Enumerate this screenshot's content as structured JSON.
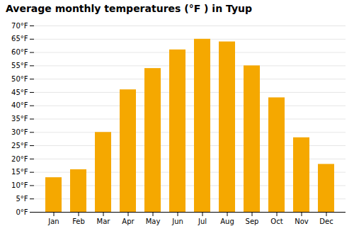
{
  "chart_data": {
    "type": "bar",
    "title": "Average monthly temperatures (°F ) in Tyup",
    "categories": [
      "Jan",
      "Feb",
      "Mar",
      "Apr",
      "May",
      "Jun",
      "Jul",
      "Aug",
      "Sep",
      "Oct",
      "Nov",
      "Dec"
    ],
    "values": [
      13,
      16,
      30,
      46,
      54,
      61,
      65,
      64,
      55,
      43,
      28,
      18
    ],
    "color": "#F5A800",
    "ylim": [
      0,
      70
    ],
    "yticks": [
      {
        "value": 0,
        "label": "0°F"
      },
      {
        "value": 5,
        "label": "5°F"
      },
      {
        "value": 10,
        "label": "10°F"
      },
      {
        "value": 15,
        "label": "15°F"
      },
      {
        "value": 20,
        "label": "20°F"
      },
      {
        "value": 25,
        "label": "25°F"
      },
      {
        "value": 30,
        "label": "30°F"
      },
      {
        "value": 35,
        "label": "35°F"
      },
      {
        "value": 40,
        "label": "40°F"
      },
      {
        "value": 45,
        "label": "45°F"
      },
      {
        "value": 50,
        "label": "50°F"
      },
      {
        "value": 55,
        "label": "55°F"
      },
      {
        "value": 60,
        "label": "60°F"
      },
      {
        "value": 65,
        "label": "65°F"
      },
      {
        "value": 70,
        "label": "70°F"
      }
    ],
    "grid": true
  }
}
